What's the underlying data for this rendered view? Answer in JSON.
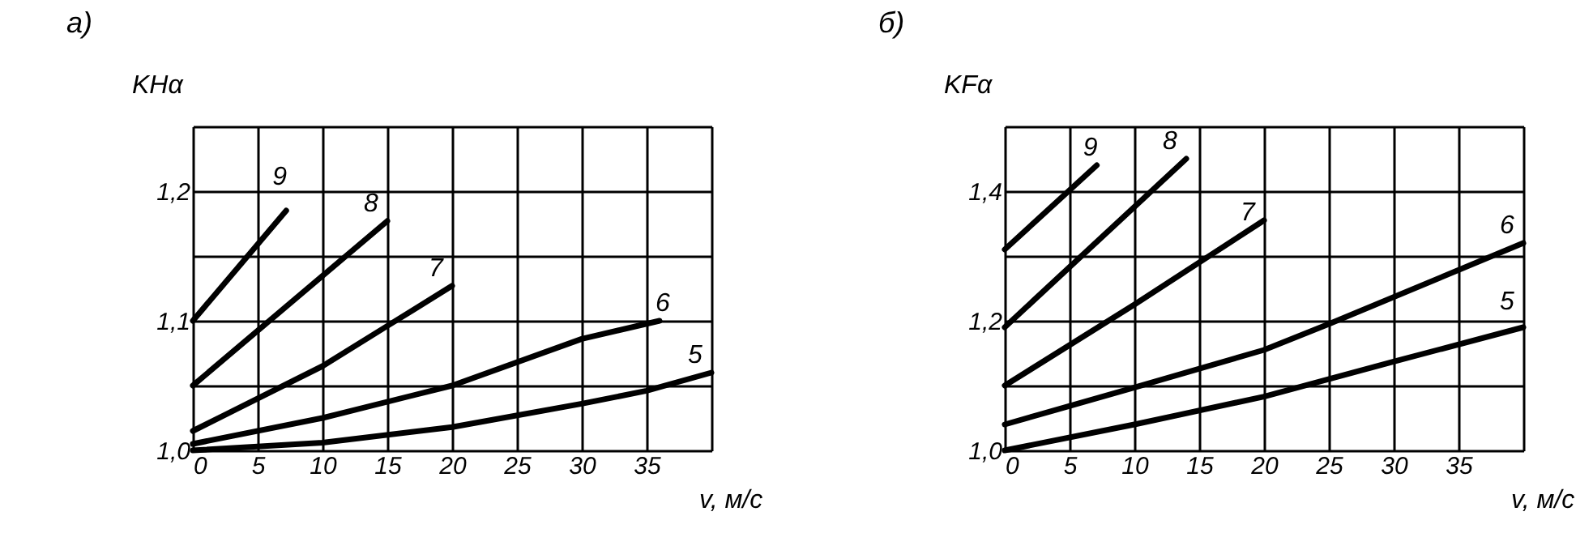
{
  "chart_data": [
    {
      "type": "line",
      "title": "а)",
      "xlabel": "v, м/с",
      "ylabel": "KHα",
      "grid": true,
      "xlim": [
        0,
        40
      ],
      "ylim": [
        1.0,
        1.25
      ],
      "xticks": [
        0,
        5,
        10,
        15,
        20,
        25,
        30,
        35,
        {
          "value": 40,
          "label": null
        }
      ],
      "yticks": [
        {
          "value": 1.0,
          "label": "1,0"
        },
        {
          "value": 1.05,
          "label": null
        },
        {
          "value": 1.1,
          "label": "1,1"
        },
        {
          "value": 1.15,
          "label": null
        },
        {
          "value": 1.2,
          "label": "1,2"
        },
        {
          "value": 1.25,
          "label": null
        }
      ],
      "series": [
        {
          "name": "9",
          "color": "#000000",
          "x": [
            0,
            7.2
          ],
          "values": [
            1.1,
            1.185
          ]
        },
        {
          "name": "8",
          "color": "#000000",
          "x": [
            0,
            15
          ],
          "values": [
            1.05,
            1.177
          ]
        },
        {
          "name": "7",
          "color": "#000000",
          "x": [
            0,
            10,
            15,
            20
          ],
          "values": [
            1.015,
            1.065,
            1.096,
            1.127
          ]
        },
        {
          "name": "6",
          "color": "#000000",
          "x": [
            0,
            10,
            20,
            30,
            36
          ],
          "values": [
            1.005,
            1.025,
            1.05,
            1.086,
            1.1
          ]
        },
        {
          "name": "5",
          "color": "#000000",
          "x": [
            0,
            10,
            20,
            30,
            35,
            40
          ],
          "values": [
            1.0,
            1.006,
            1.018,
            1.036,
            1.046,
            1.06
          ]
        }
      ]
    },
    {
      "type": "line",
      "title": "б)",
      "xlabel": "v, м/с",
      "ylabel": "KFα",
      "grid": true,
      "xlim": [
        0,
        40
      ],
      "ylim": [
        1.0,
        1.5
      ],
      "xticks": [
        0,
        5,
        10,
        15,
        20,
        25,
        30,
        35,
        {
          "value": 40,
          "label": null
        }
      ],
      "yticks": [
        {
          "value": 1.0,
          "label": "1,0"
        },
        {
          "value": 1.1,
          "label": null
        },
        {
          "value": 1.2,
          "label": "1,2"
        },
        {
          "value": 1.3,
          "label": null
        },
        {
          "value": 1.4,
          "label": "1,4"
        },
        {
          "value": 1.5,
          "label": null
        }
      ],
      "series": [
        {
          "name": "9",
          "color": "#000000",
          "x": [
            0,
            7.1
          ],
          "values": [
            1.31,
            1.44
          ]
        },
        {
          "name": "8",
          "color": "#000000",
          "x": [
            0,
            14
          ],
          "values": [
            1.19,
            1.45
          ]
        },
        {
          "name": "7",
          "color": "#000000",
          "x": [
            0,
            10,
            20
          ],
          "values": [
            1.1,
            1.225,
            1.355
          ]
        },
        {
          "name": "6",
          "color": "#000000",
          "x": [
            0,
            10,
            20,
            25,
            40
          ],
          "values": [
            1.04,
            1.097,
            1.155,
            1.195,
            1.32
          ]
        },
        {
          "name": "5",
          "color": "#000000",
          "x": [
            0,
            10,
            20,
            30,
            40
          ],
          "values": [
            1.0,
            1.04,
            1.083,
            1.137,
            1.19
          ]
        }
      ]
    }
  ]
}
